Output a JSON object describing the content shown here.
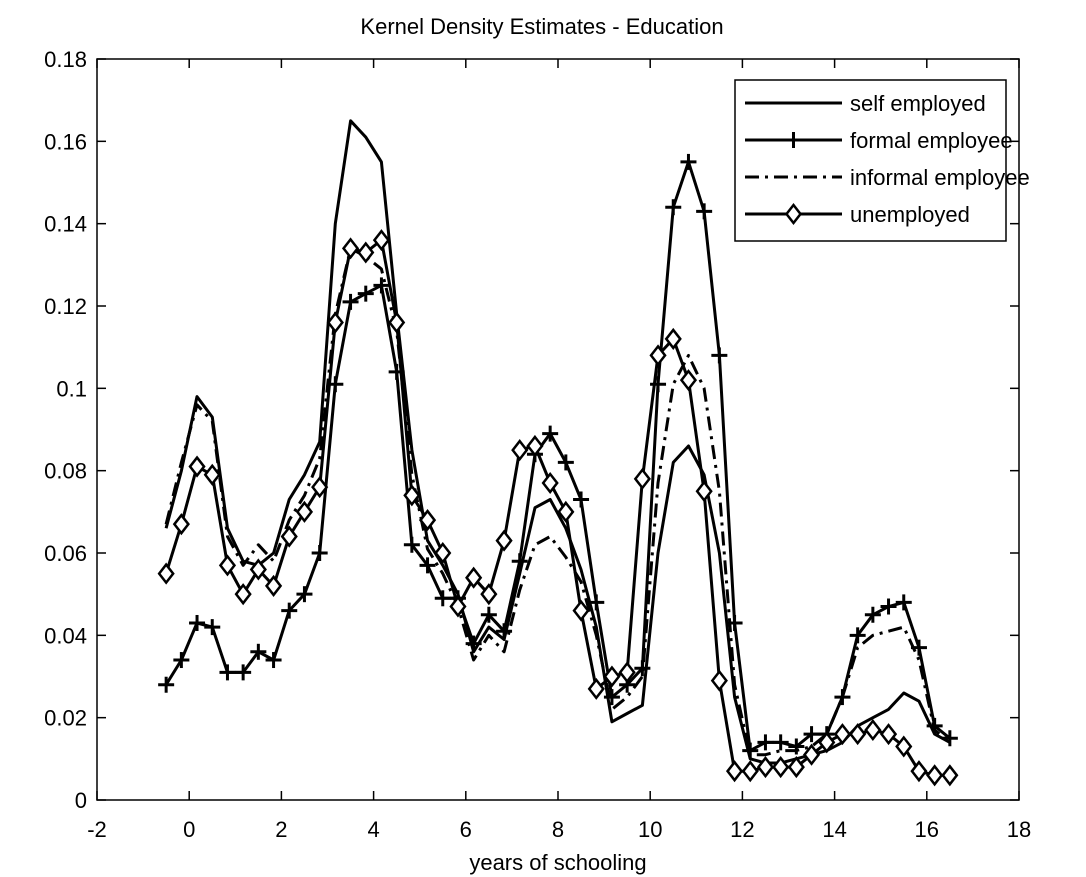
{
  "chart_data": {
    "type": "line",
    "title": "Kernel Density Estimates - Education",
    "xlabel": "years of schooling",
    "ylabel": "",
    "xlim": [
      -2,
      18
    ],
    "ylim": [
      0,
      0.18
    ],
    "xticks": [
      -2,
      0,
      2,
      4,
      6,
      8,
      10,
      12,
      14,
      16,
      18
    ],
    "yticks": [
      0,
      0.02,
      0.04,
      0.06,
      0.08,
      0.1,
      0.12,
      0.14,
      0.16,
      0.18
    ],
    "xtick_labels": [
      "-2",
      "0",
      "2",
      "4",
      "6",
      "8",
      "10",
      "12",
      "14",
      "16",
      "18"
    ],
    "ytick_labels": [
      "0",
      "0.02",
      "0.04",
      "0.06",
      "0.08",
      "0.1",
      "0.12",
      "0.14",
      "0.16",
      "0.18"
    ],
    "grid": false,
    "legend_position": "top-right",
    "x": [
      -0.5,
      -0.17,
      0.17,
      0.5,
      0.83,
      1.17,
      1.5,
      1.83,
      2.17,
      2.5,
      2.83,
      3.17,
      3.5,
      3.83,
      4.17,
      4.5,
      4.83,
      5.17,
      5.5,
      5.83,
      6.17,
      6.5,
      6.83,
      7.17,
      7.5,
      7.83,
      8.17,
      8.5,
      8.83,
      9.17,
      9.5,
      9.83,
      10.17,
      10.5,
      10.83,
      11.17,
      11.5,
      11.83,
      12.17,
      12.5,
      12.83,
      13.17,
      13.5,
      13.83,
      14.17,
      14.5,
      14.83,
      15.17,
      15.5,
      15.83,
      16.17,
      16.5
    ],
    "series": [
      {
        "name": "self employed",
        "style": "solid",
        "marker": "none",
        "values": [
          0.066,
          0.08,
          0.098,
          0.093,
          0.066,
          0.058,
          0.057,
          0.06,
          0.073,
          0.079,
          0.087,
          0.14,
          0.165,
          0.161,
          0.155,
          0.118,
          0.085,
          0.063,
          0.057,
          0.05,
          0.036,
          0.042,
          0.039,
          0.055,
          0.071,
          0.073,
          0.066,
          0.056,
          0.042,
          0.019,
          0.021,
          0.023,
          0.06,
          0.082,
          0.086,
          0.079,
          0.06,
          0.025,
          0.01,
          0.009,
          0.009,
          0.01,
          0.011,
          0.012,
          0.014,
          0.018,
          0.02,
          0.022,
          0.026,
          0.024,
          0.016,
          0.014
        ]
      },
      {
        "name": "formal employee",
        "style": "solid",
        "marker": "plus",
        "values": [
          0.028,
          0.034,
          0.043,
          0.042,
          0.031,
          0.031,
          0.036,
          0.034,
          0.046,
          0.05,
          0.06,
          0.101,
          0.121,
          0.123,
          0.125,
          0.104,
          0.062,
          0.057,
          0.049,
          0.049,
          0.038,
          0.045,
          0.041,
          0.058,
          0.084,
          0.089,
          0.082,
          0.073,
          0.048,
          0.025,
          0.028,
          0.032,
          0.101,
          0.144,
          0.155,
          0.143,
          0.108,
          0.043,
          0.012,
          0.014,
          0.014,
          0.013,
          0.016,
          0.016,
          0.025,
          0.04,
          0.045,
          0.047,
          0.048,
          0.037,
          0.018,
          0.015
        ]
      },
      {
        "name": "informal employee",
        "style": "dashdot",
        "marker": "none",
        "values": [
          0.067,
          0.082,
          0.096,
          0.092,
          0.064,
          0.057,
          0.062,
          0.058,
          0.068,
          0.074,
          0.083,
          0.118,
          0.134,
          0.132,
          0.129,
          0.114,
          0.079,
          0.061,
          0.055,
          0.047,
          0.034,
          0.04,
          0.036,
          0.051,
          0.062,
          0.064,
          0.059,
          0.053,
          0.04,
          0.022,
          0.025,
          0.03,
          0.077,
          0.101,
          0.108,
          0.1,
          0.075,
          0.028,
          0.011,
          0.011,
          0.012,
          0.012,
          0.013,
          0.016,
          0.025,
          0.037,
          0.04,
          0.041,
          0.042,
          0.034,
          0.017,
          0.014
        ]
      },
      {
        "name": "unemployed",
        "style": "solid",
        "marker": "diamond",
        "values": [
          0.055,
          0.067,
          0.081,
          0.079,
          0.057,
          0.05,
          0.056,
          0.052,
          0.064,
          0.07,
          0.076,
          0.116,
          0.134,
          0.133,
          0.136,
          0.116,
          0.074,
          0.068,
          0.06,
          0.047,
          0.054,
          0.05,
          0.063,
          0.085,
          0.086,
          0.077,
          0.07,
          0.046,
          0.027,
          0.03,
          0.031,
          0.078,
          0.108,
          0.112,
          0.102,
          0.075,
          0.029,
          0.007,
          0.007,
          0.008,
          0.008,
          0.008,
          0.011,
          0.014,
          0.016,
          0.016,
          0.017,
          0.016,
          0.013,
          0.007,
          0.006,
          0.006
        ]
      }
    ]
  }
}
